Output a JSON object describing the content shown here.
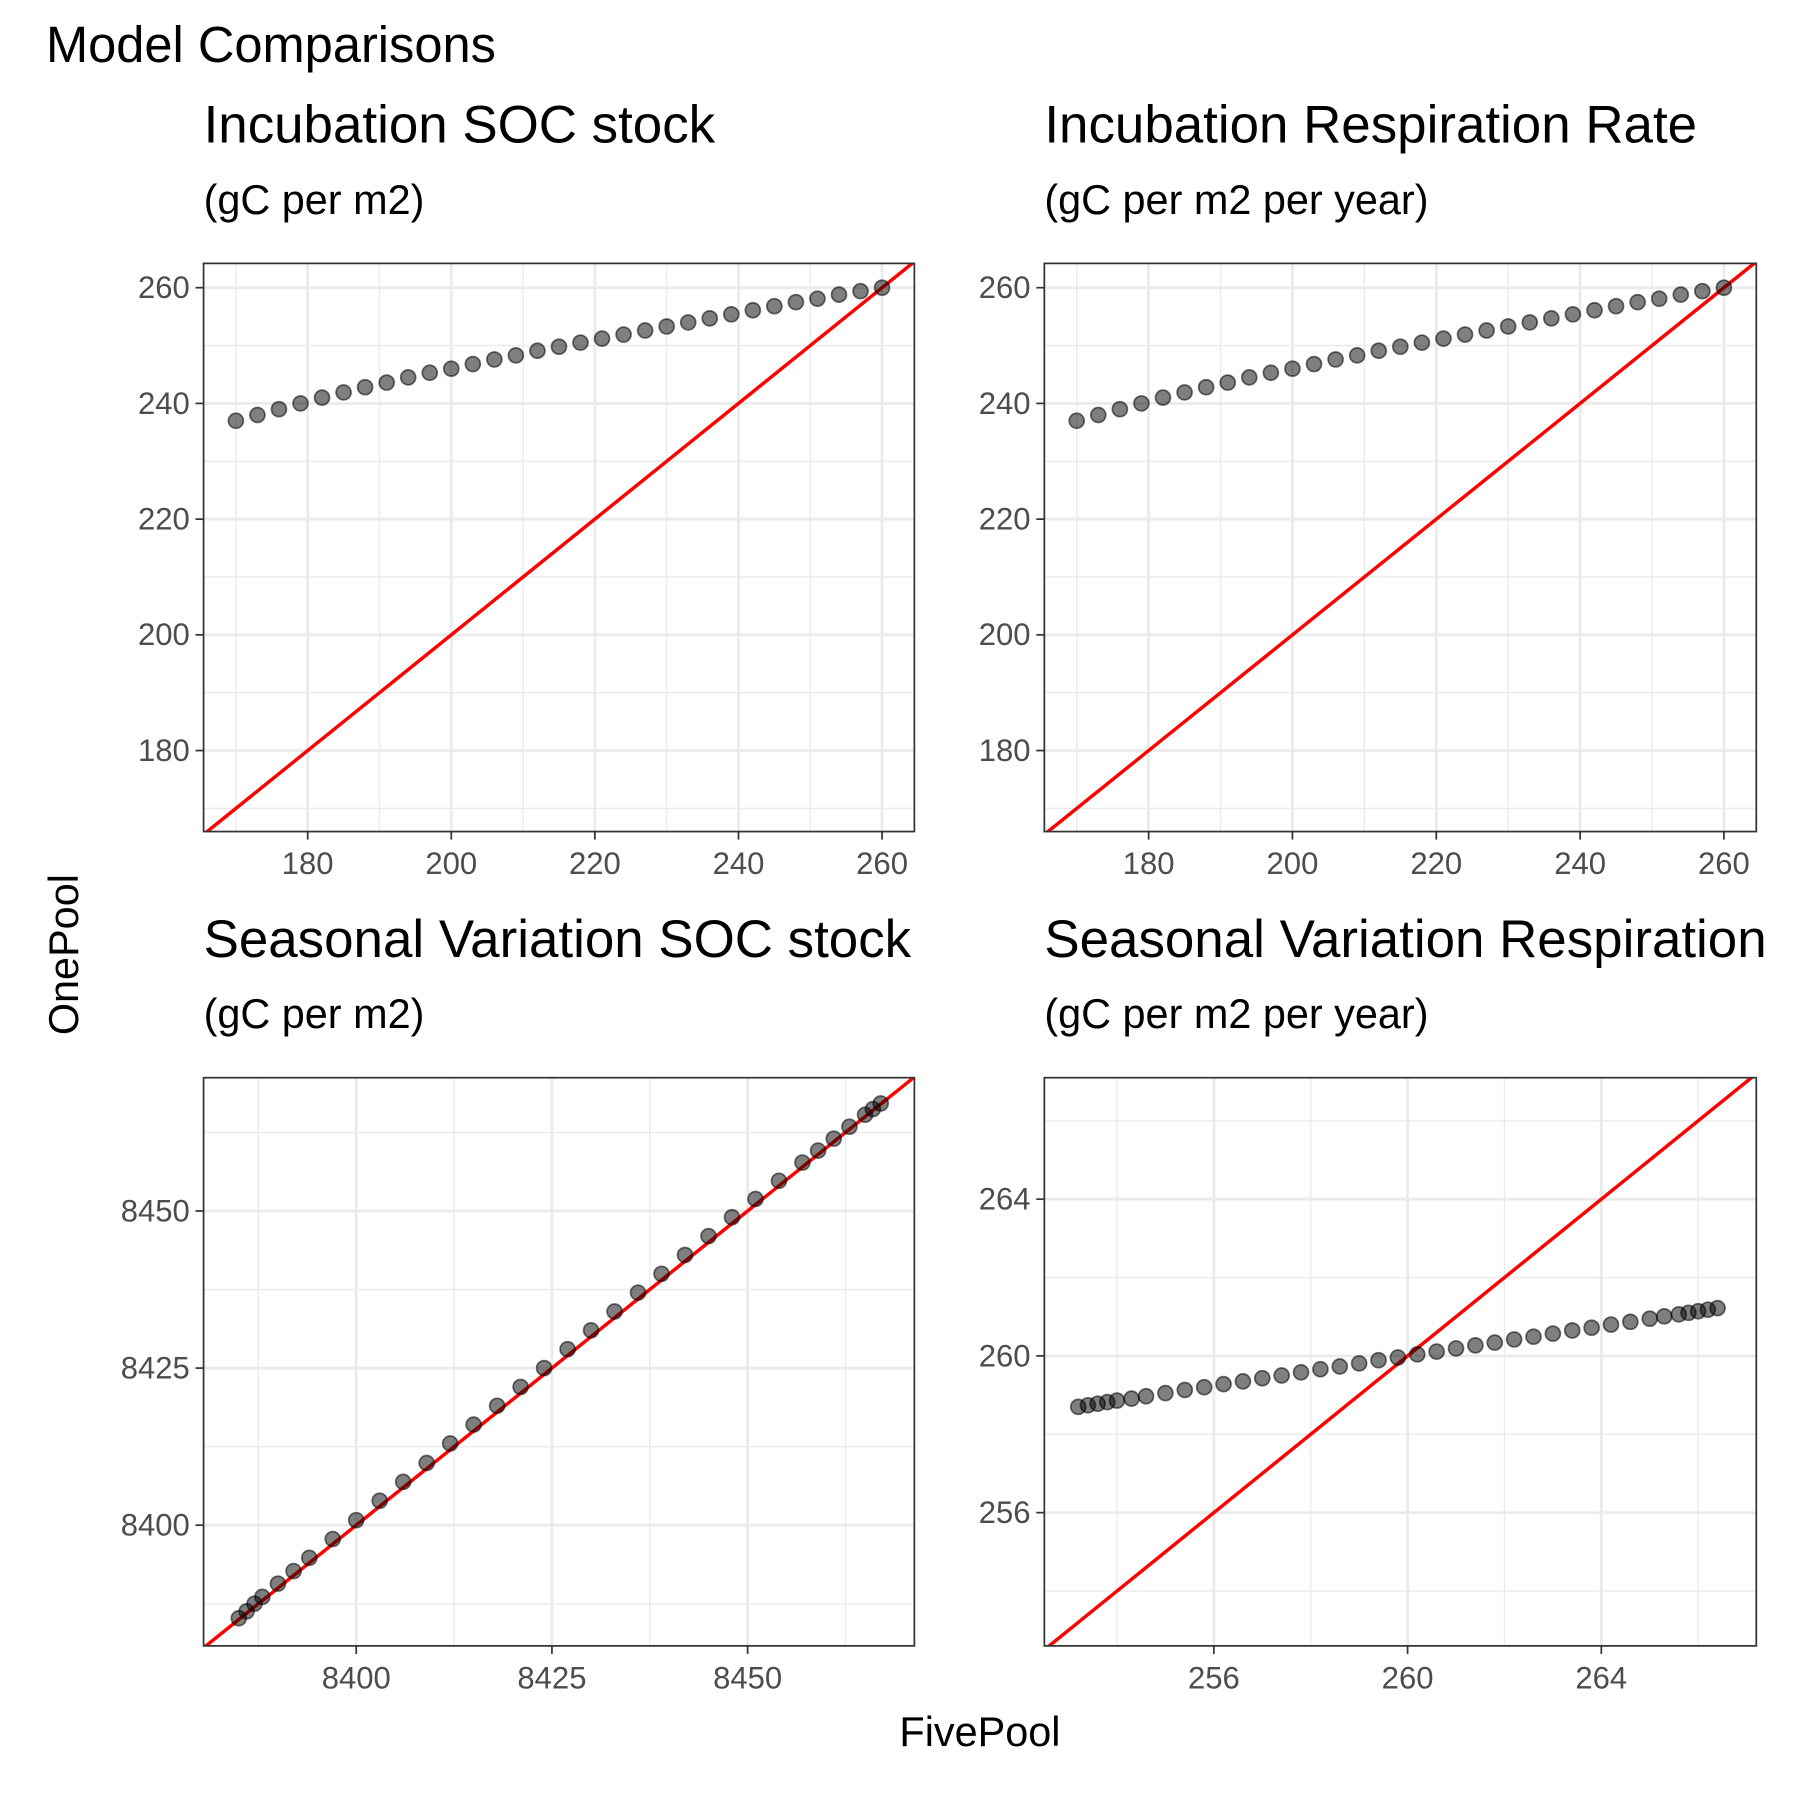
{
  "title": "Model Comparisons",
  "x_label": "FivePool",
  "y_label": "OnePool",
  "chart_data": [
    {
      "type": "scatter",
      "title": "Incubation SOC stock",
      "subtitle": "(gC per m2)",
      "x": [
        170,
        173,
        176,
        179,
        182,
        185,
        188,
        191,
        194,
        197,
        200,
        203,
        206,
        209,
        212,
        215,
        218,
        221,
        224,
        227,
        230,
        233,
        236,
        239,
        242,
        245,
        248,
        251,
        254,
        257,
        260
      ],
      "values": [
        237,
        238,
        239,
        240,
        241,
        241.9,
        242.8,
        243.6,
        244.5,
        245.3,
        246,
        246.8,
        247.6,
        248.3,
        249.1,
        249.8,
        250.5,
        251.2,
        251.9,
        252.6,
        253.3,
        254,
        254.7,
        255.4,
        256.1,
        256.8,
        257.5,
        258.1,
        258.8,
        259.4,
        260
      ],
      "color": "#000000",
      "xlim": [
        165.5,
        264.5
      ],
      "ylim": [
        166,
        264.2
      ],
      "xticks": [
        180,
        200,
        220,
        240,
        260
      ],
      "yticks": [
        180,
        200,
        220,
        240,
        260
      ],
      "grid": true,
      "abline": {
        "slope": 1,
        "intercept": 0,
        "color": "#ff0000"
      }
    },
    {
      "type": "scatter",
      "title": "Incubation Respiration Rate",
      "subtitle": "(gC per m2 per year)",
      "x": [
        170,
        173,
        176,
        179,
        182,
        185,
        188,
        191,
        194,
        197,
        200,
        203,
        206,
        209,
        212,
        215,
        218,
        221,
        224,
        227,
        230,
        233,
        236,
        239,
        242,
        245,
        248,
        251,
        254,
        257,
        260
      ],
      "values": [
        237,
        238,
        239,
        240,
        241,
        241.9,
        242.8,
        243.6,
        244.5,
        245.3,
        246,
        246.8,
        247.6,
        248.3,
        249.1,
        249.8,
        250.5,
        251.2,
        251.9,
        252.6,
        253.3,
        254,
        254.7,
        255.4,
        256.1,
        256.8,
        257.5,
        258.1,
        258.8,
        259.4,
        260
      ],
      "color": "#000000",
      "xlim": [
        165.5,
        264.5
      ],
      "ylim": [
        166,
        264.2
      ],
      "xticks": [
        180,
        200,
        220,
        240,
        260
      ],
      "yticks": [
        180,
        200,
        220,
        240,
        260
      ],
      "grid": true,
      "abline": {
        "slope": 1,
        "intercept": 0,
        "color": "#ff0000"
      }
    },
    {
      "type": "scatter",
      "title": "Seasonal Variation SOC stock",
      "subtitle": "(gC per m2)",
      "x": [
        8385,
        8386,
        8387,
        8388,
        8390,
        8392,
        8394,
        8397,
        8400,
        8403,
        8406,
        8409,
        8412,
        8415,
        8418,
        8421,
        8424,
        8427,
        8430,
        8433,
        8436,
        8439,
        8442,
        8445,
        8448,
        8451,
        8454,
        8457,
        8459,
        8461,
        8463,
        8465,
        8466,
        8467
      ],
      "values": [
        8385.2,
        8386.3,
        8387.5,
        8388.6,
        8390.7,
        8392.7,
        8394.8,
        8397.8,
        8400.8,
        8403.9,
        8406.9,
        8409.9,
        8413,
        8416,
        8419,
        8422,
        8425,
        8428,
        8431,
        8434,
        8437,
        8440,
        8443,
        8446,
        8449,
        8451.9,
        8454.8,
        8457.7,
        8459.6,
        8461.5,
        8463.4,
        8465.3,
        8466.2,
        8467.1
      ],
      "color": "#000000",
      "xlim": [
        8380.5,
        8471.3
      ],
      "ylim": [
        8380.8,
        8471.2
      ],
      "xticks": [
        8400,
        8425,
        8450
      ],
      "yticks": [
        8400,
        8425,
        8450
      ],
      "grid": true,
      "abline": {
        "slope": 1,
        "intercept": 0,
        "color": "#ff0000"
      }
    },
    {
      "type": "scatter",
      "title": "Seasonal Variation Respiration",
      "subtitle": "(gC per m2 per year)",
      "x": [
        253.2,
        253.4,
        253.6,
        253.8,
        254,
        254.3,
        254.6,
        255,
        255.4,
        255.8,
        256.2,
        256.6,
        257,
        257.4,
        257.8,
        258.2,
        258.6,
        259,
        259.4,
        259.8,
        260.2,
        260.6,
        261,
        261.4,
        261.8,
        262.2,
        262.6,
        263,
        263.4,
        263.8,
        264.2,
        264.6,
        265,
        265.3,
        265.6,
        265.8,
        266,
        266.2,
        266.4
      ],
      "values": [
        258.7,
        258.74,
        258.78,
        258.82,
        258.86,
        258.91,
        258.97,
        259.05,
        259.13,
        259.2,
        259.28,
        259.35,
        259.43,
        259.5,
        259.58,
        259.66,
        259.73,
        259.81,
        259.89,
        259.96,
        260.04,
        260.11,
        260.19,
        260.27,
        260.34,
        260.42,
        260.49,
        260.57,
        260.65,
        260.72,
        260.8,
        260.87,
        260.95,
        261.01,
        261.06,
        261.1,
        261.14,
        261.18,
        261.22
      ],
      "color": "#000000",
      "xlim": [
        252.5,
        267.2
      ],
      "ylim": [
        252.6,
        267.1
      ],
      "xticks": [
        256,
        260,
        264
      ],
      "yticks": [
        256,
        260,
        264
      ],
      "grid": true,
      "abline": {
        "slope": 1,
        "intercept": 0,
        "color": "#ff0000"
      }
    }
  ]
}
